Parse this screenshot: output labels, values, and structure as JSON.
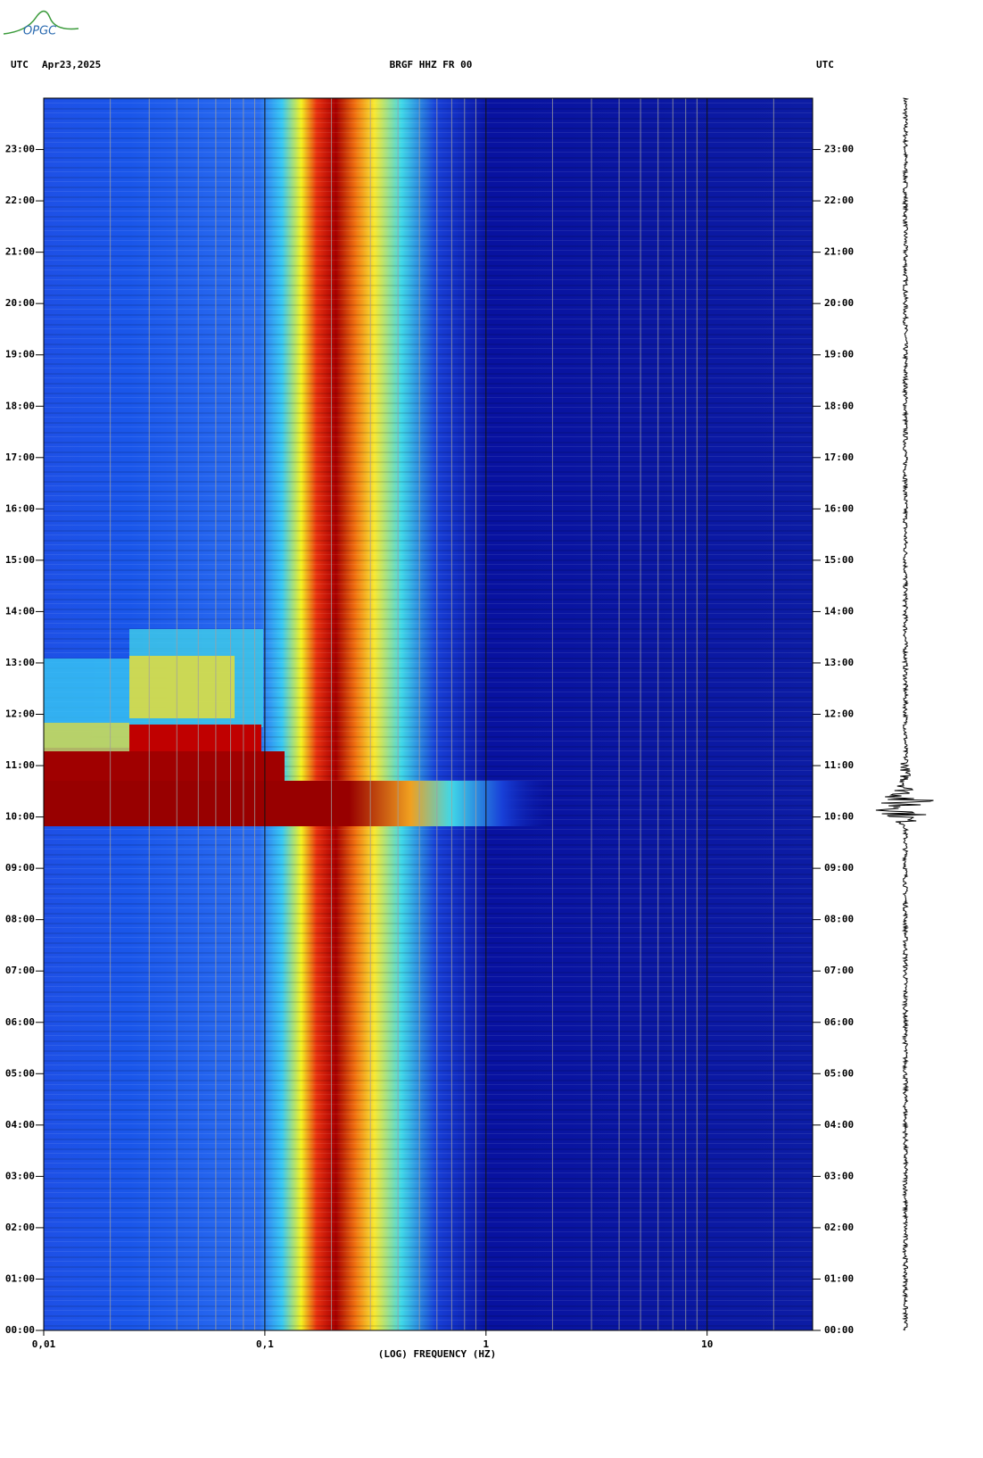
{
  "logo": "OPGC",
  "chart_data": {
    "type": "spectrogram",
    "title": "BRGF HHZ FR 00",
    "date": "Apr23,2025",
    "timezone_left": "UTC",
    "timezone_right": "UTC",
    "xlabel": "(LOG) FREQUENCY (HZ)",
    "xscale": "log",
    "xlim": [
      0.01,
      30
    ],
    "ylim": [
      0,
      24
    ],
    "xticks": [
      {
        "value": 0.01,
        "label": "0,01"
      },
      {
        "value": 0.1,
        "label": "0,1"
      },
      1,
      10
    ],
    "minor_xticks": [
      0.02,
      0.03,
      0.04,
      0.05,
      0.06,
      0.07,
      0.08,
      0.09,
      0.2,
      0.3,
      0.4,
      0.5,
      0.6,
      0.7,
      0.8,
      0.9,
      2,
      3,
      4,
      5,
      6,
      7,
      8,
      9,
      20
    ],
    "yticks": [
      {
        "value": 0,
        "label": "00:00"
      },
      {
        "value": 1,
        "label": "01:00"
      },
      {
        "value": 2,
        "label": "02:00"
      },
      {
        "value": 3,
        "label": "03:00"
      },
      {
        "value": 4,
        "label": "04:00"
      },
      {
        "value": 5,
        "label": "05:00"
      },
      {
        "value": 6,
        "label": "06:00"
      },
      {
        "value": 7,
        "label": "07:00"
      },
      {
        "value": 8,
        "label": "08:00"
      },
      {
        "value": 9,
        "label": "09:00"
      },
      {
        "value": 10,
        "label": "10:00"
      },
      {
        "value": 11,
        "label": "11:00"
      },
      {
        "value": 12,
        "label": "12:00"
      },
      {
        "value": 13,
        "label": "13:00"
      },
      {
        "value": 14,
        "label": "14:00"
      },
      {
        "value": 15,
        "label": "15:00"
      },
      {
        "value": 16,
        "label": "16:00"
      },
      {
        "value": 17,
        "label": "17:00"
      },
      {
        "value": 18,
        "label": "18:00"
      },
      {
        "value": 19,
        "label": "19:00"
      },
      {
        "value": 20,
        "label": "20:00"
      },
      {
        "value": 21,
        "label": "21:00"
      },
      {
        "value": 22,
        "label": "22:00"
      },
      {
        "value": 23,
        "label": "23:00"
      }
    ],
    "grid": true
  }
}
